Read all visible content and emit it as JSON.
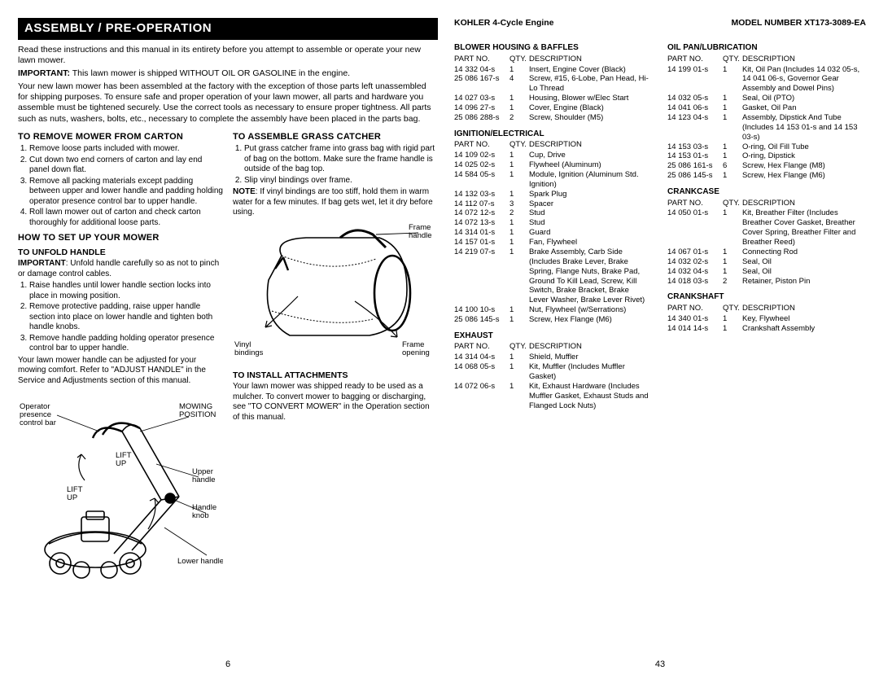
{
  "left": {
    "bar": "ASSEMBLY / PRE-OPERATION",
    "intro1": "Read these instructions and this manual in its entirety before you attempt to assemble or operate your new lawn mower.",
    "intro2a": "IMPORTANT:",
    "intro2b": " This lawn mower is shipped WITHOUT OIL OR GASOLINE in the engine.",
    "intro3": "Your new lawn mower has been assembled at the factory with the exception of those parts left unassembled for shipping purposes. To ensure safe and proper operation of your lawn mower, all parts and hardware you assemble must be tightened securely. Use the correct tools as necessary to ensure proper tightness. All parts such as nuts, washers, bolts, etc., necessary to complete the assembly have been placed in the parts bag.",
    "colA": {
      "h_remove": "TO REMOVE MOWER FROM CARTON",
      "remove": [
        "Remove loose parts included with mower.",
        "Cut down two end corners of carton and lay end panel down flat.",
        "Remove all packing materials except padding between upper and lower handle and padding holding operator presence control bar to upper handle.",
        "Roll lawn mower out of carton and check carton thoroughly for additional loose parts."
      ],
      "h_setup": "HOW TO SET UP YOUR MOWER",
      "h_unfold": "TO UNFOLD HANDLE",
      "unfold_imp_a": "IMPORTANT",
      "unfold_imp_b": ": Unfold handle carefully so as not to pinch or damage control cables.",
      "unfold": [
        "Raise handles until lower handle section locks into place in mowing position.",
        "Remove protective padding, raise upper handle section into place on lower handle and tighten both handle knobs.",
        "Remove handle padding holding operator presence control bar to upper handle."
      ],
      "unfold_after": "Your lawn mower handle can be adjusted for your mowing comfort. Refer to \"ADJUST HANDLE\" in the Service and Adjustments section of this manual.",
      "fig1": {
        "op1": "Operator",
        "op2": "presence",
        "op3": "control bar",
        "mow1": "MOWING",
        "mow2": "POSITION",
        "lift": "LIFT",
        "up": "UP",
        "upper": "Upper",
        "handle": "handle",
        "knob": "Handle",
        "knob2": "knob",
        "lower": "Lower handle"
      }
    },
    "colB": {
      "h_grass": "TO ASSEMBLE GRASS CATCHER",
      "grass": [
        "Put grass catcher frame into grass bag with rigid part of bag on the bottom. Make sure the frame handle is outside of the bag top.",
        "Slip vinyl bindings over frame."
      ],
      "grass_note_a": "NOTE",
      "grass_note_b": ": If vinyl bindings are too stiff, hold them in warm water for a few minutes. If bag gets wet, let it dry before using.",
      "fig2": {
        "fh1": "Frame",
        "fh2": "handle",
        "vb1": "Vinyl",
        "vb2": "bindings",
        "fo1": "Frame",
        "fo2": "opening"
      },
      "h_install": "TO INSTALL ATTACHMENTS",
      "install": "Your lawn mower was shipped ready to be used as a mulcher. To convert mower to bagging or discharging, see \"TO CONVERT MOWER\" in the Operation section of this manual."
    },
    "pagenum": "6"
  },
  "right": {
    "hdr_l": "KOHLER 4-Cycle Engine",
    "hdr_r": "MODEL NUMBER XT173-3089-EA",
    "col_hdr": {
      "pn": "PART NO.",
      "q": "QTY.",
      "d": "DESCRIPTION"
    },
    "sections1": [
      {
        "title": "BLOWER HOUSING & BAFFLES",
        "rows": [
          [
            "14 332 04-s",
            "1",
            "Insert, Engine Cover (Black)"
          ],
          [
            "25 086 167-s",
            "4",
            "Screw, #15, 6-Lobe, Pan Head, Hi-Lo Thread"
          ],
          [
            "14 027 03-s",
            "1",
            "Housing, Blower w/Elec Start"
          ],
          [
            "14 096 27-s",
            "1",
            "Cover, Engine (Black)"
          ],
          [
            "25 086 288-s",
            "2",
            "Screw, Shoulder (M5)"
          ]
        ]
      },
      {
        "title": "IGNITION/ELECTRICAL",
        "rows": [
          [
            "14 109 02-s",
            "1",
            "Cup, Drive"
          ],
          [
            "14 025 02-s",
            "1",
            "Flywheel (Aluminum)"
          ],
          [
            "14 584 05-s",
            "1",
            "Module, Ignition (Aluminum Std. Ignition)"
          ],
          [
            "14 132 03-s",
            "1",
            "Spark Plug"
          ],
          [
            "14 112 07-s",
            "3",
            "Spacer"
          ],
          [
            "14 072 12-s",
            "2",
            "Stud"
          ],
          [
            "14 072 13-s",
            "1",
            "Stud"
          ],
          [
            "14 314 01-s",
            "1",
            "Guard"
          ],
          [
            "14 157 01-s",
            "1",
            "Fan, Flywheel"
          ],
          [
            "14 219 07-s",
            "1",
            "Brake Assembly, Carb Side (Includes Brake Lever, Brake Spring, Flange Nuts, Brake Pad, Ground To Kill Lead, Screw, Kill Switch, Brake Bracket, Brake Lever Washer, Brake Lever Rivet)"
          ],
          [
            "14 100 10-s",
            "1",
            "Nut, Flywheel (w/Serrations)"
          ],
          [
            "25 086 145-s",
            "1",
            "Screw, Hex Flange (M6)"
          ]
        ]
      },
      {
        "title": "EXHAUST",
        "rows": [
          [
            "14 314 04-s",
            "1",
            "Shield, Muffler"
          ],
          [
            "14 068 05-s",
            "1",
            "Kit, Muffler (Includes Muffler Gasket)"
          ],
          [
            "14 072 06-s",
            "1",
            "Kit, Exhaust Hardware (Includes Muffler Gasket, Exhaust Studs and Flanged Lock Nuts)"
          ]
        ]
      }
    ],
    "sections2": [
      {
        "title": "OIL PAN/LUBRICATION",
        "rows": [
          [
            "14 199 01-s",
            "1",
            "Kit, Oil Pan (Includes 14 032 05-s, 14 041 06-s, Governor Gear Assembly and Dowel Pins)"
          ],
          [
            "14 032 05-s",
            "1",
            "Seal, Oil (PTO)"
          ],
          [
            "14 041 06-s",
            "1",
            "Gasket, Oil Pan"
          ],
          [
            "14 123 04-s",
            "1",
            "Assembly, Dipstick And Tube (Includes 14 153 01-s and 14 153 03-s)"
          ],
          [
            "14 153 03-s",
            "1",
            "O-ring, Oil Fill Tube"
          ],
          [
            "14 153 01-s",
            "1",
            "O-ring, Dipstick"
          ],
          [
            "25 086 161-s",
            "6",
            "Screw, Hex Flange (M8)"
          ],
          [
            "25 086 145-s",
            "1",
            "Screw, Hex Flange (M6)"
          ]
        ]
      },
      {
        "title": "CRANKCASE",
        "rows": [
          [
            "14 050 01-s",
            "1",
            "Kit, Breather Filter (Includes Breather Cover Gasket, Breather Cover Spring, Breather Filter and Breather Reed)"
          ],
          [
            "14 067 01-s",
            "1",
            "Connecting Rod"
          ],
          [
            "14 032 02-s",
            "1",
            "Seal, Oil"
          ],
          [
            "14 032 04-s",
            "1",
            "Seal, Oil"
          ],
          [
            "14 018 03-s",
            "2",
            "Retainer, Piston Pin"
          ]
        ]
      },
      {
        "title": "CRANKSHAFT",
        "rows": [
          [
            "14 340 01-s",
            "1",
            "Key, Flywheel"
          ],
          [
            "14 014 14-s",
            "1",
            "Crankshaft Assembly"
          ]
        ]
      }
    ],
    "pagenum": "43"
  }
}
